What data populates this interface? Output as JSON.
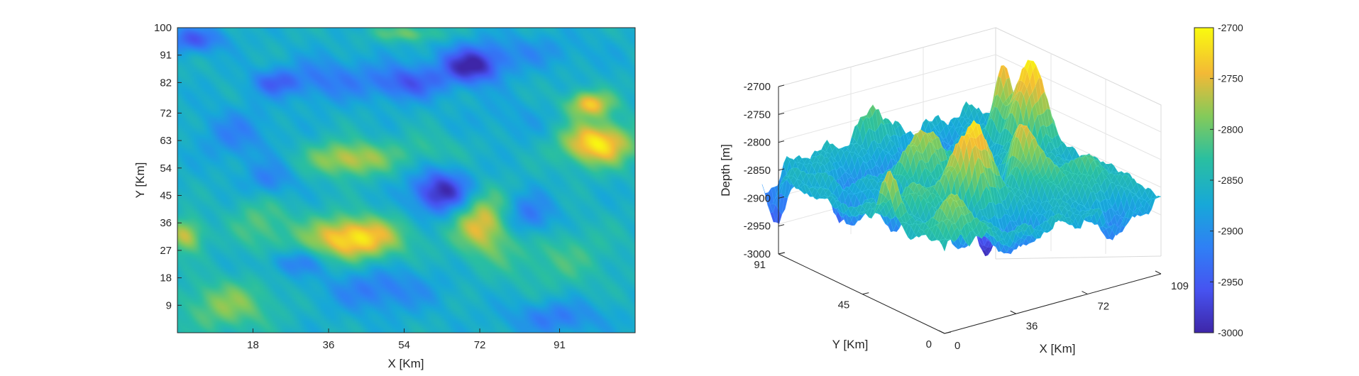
{
  "chart_data": [
    {
      "type": "heatmap",
      "xlabel": "X [Km]",
      "ylabel": "Y [Km]",
      "xlim": [
        0,
        109
      ],
      "ylim": [
        0,
        100
      ],
      "x_ticks": [
        "18",
        "36",
        "54",
        "72",
        "91"
      ],
      "y_ticks": [
        "9",
        "18",
        "27",
        "36",
        "45",
        "54",
        "63",
        "72",
        "82",
        "91",
        "100"
      ],
      "colormap": "parula",
      "value_range": [
        -3000,
        -2700
      ],
      "base_depth": -2860,
      "features": [
        {
          "x": 42,
          "y": 31,
          "depth": -2710,
          "sx": 8,
          "sy": 5
        },
        {
          "x": 73,
          "y": 36,
          "depth": -2740,
          "sx": 5,
          "sy": 7
        },
        {
          "x": 41,
          "y": 57,
          "depth": -2760,
          "sx": 7,
          "sy": 4
        },
        {
          "x": 100,
          "y": 62,
          "depth": -2710,
          "sx": 6,
          "sy": 5
        },
        {
          "x": 98,
          "y": 75,
          "depth": -2740,
          "sx": 4,
          "sy": 3
        },
        {
          "x": 2,
          "y": 32,
          "depth": -2760,
          "sx": 3,
          "sy": 4
        },
        {
          "x": 12,
          "y": 9,
          "depth": -2790,
          "sx": 8,
          "sy": 6
        },
        {
          "x": 20,
          "y": 36,
          "depth": -2810,
          "sx": 5,
          "sy": 7
        },
        {
          "x": 63,
          "y": 46,
          "depth": -3000,
          "sx": 5,
          "sy": 5
        },
        {
          "x": 70,
          "y": 87,
          "depth": -2990,
          "sx": 5,
          "sy": 4
        },
        {
          "x": 55,
          "y": 82,
          "depth": -2950,
          "sx": 6,
          "sy": 4
        },
        {
          "x": 4,
          "y": 96,
          "depth": -2950,
          "sx": 5,
          "sy": 3
        },
        {
          "x": 36,
          "y": 83,
          "depth": -2920,
          "sx": 8,
          "sy": 5
        },
        {
          "x": 23,
          "y": 82,
          "depth": -2930,
          "sx": 4,
          "sy": 3
        },
        {
          "x": 83,
          "y": 38,
          "depth": -2940,
          "sx": 5,
          "sy": 5
        },
        {
          "x": 48,
          "y": 14,
          "depth": -2920,
          "sx": 9,
          "sy": 5
        },
        {
          "x": 28,
          "y": 23,
          "depth": -2920,
          "sx": 5,
          "sy": 3
        },
        {
          "x": 22,
          "y": 50,
          "depth": -2920,
          "sx": 4,
          "sy": 4
        },
        {
          "x": 14,
          "y": 65,
          "depth": -2910,
          "sx": 6,
          "sy": 6
        },
        {
          "x": 90,
          "y": 5,
          "depth": -2920,
          "sx": 8,
          "sy": 4
        },
        {
          "x": 80,
          "y": 92,
          "depth": -2900,
          "sx": 12,
          "sy": 4
        },
        {
          "x": 80,
          "y": 70,
          "depth": -2880,
          "sx": 8,
          "sy": 5
        },
        {
          "x": 60,
          "y": 60,
          "depth": -2830,
          "sx": 6,
          "sy": 4
        },
        {
          "x": 55,
          "y": 98,
          "depth": -2800,
          "sx": 6,
          "sy": 2
        },
        {
          "x": 90,
          "y": 25,
          "depth": -2820,
          "sx": 10,
          "sy": 8
        }
      ]
    },
    {
      "type": "surface",
      "zlabel": "Depth [m]",
      "ylabel": "Y [Km]",
      "xlabel": "X [Km]",
      "z_ticks": [
        "-2700",
        "-2750",
        "-2800",
        "-2850",
        "-2900",
        "-2950",
        "-3000"
      ],
      "y_ticks": [
        "91",
        "45",
        "0"
      ],
      "x_ticks": [
        "0",
        "36",
        "72",
        "109"
      ],
      "zlim": [
        -3000,
        -2700
      ],
      "colormap": "parula"
    }
  ],
  "colorbar": {
    "ticks": [
      "-2700",
      "-2750",
      "-2800",
      "-2850",
      "-2900",
      "-2950",
      "-3000"
    ],
    "range": [
      -3000,
      -2700
    ]
  }
}
